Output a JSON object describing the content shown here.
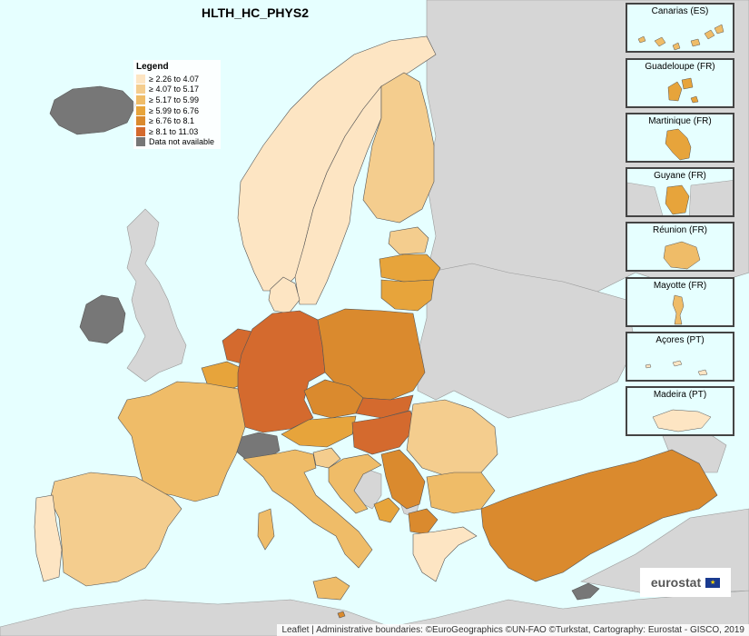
{
  "title": "HLTH_HC_PHYS2",
  "legend": {
    "title": "Legend",
    "items": [
      {
        "label": "≥ 2.26 to 4.07",
        "color": "#fde5c3"
      },
      {
        "label": "≥ 4.07 to 5.17",
        "color": "#f4cd8e"
      },
      {
        "label": "≥ 5.17 to 5.99",
        "color": "#efbc68"
      },
      {
        "label": "≥ 5.99 to 6.76",
        "color": "#e7a43b"
      },
      {
        "label": "≥ 6.76 to 8.1",
        "color": "#da8a2e"
      },
      {
        "label": "≥ 8.1 to 11.03",
        "color": "#d46a2e"
      },
      {
        "label": "Data not available",
        "color": "#777777"
      }
    ]
  },
  "insets": [
    {
      "label": "Canarias (ES)"
    },
    {
      "label": "Guadeloupe (FR)"
    },
    {
      "label": "Martinique (FR)"
    },
    {
      "label": "Guyane (FR)"
    },
    {
      "label": "Réunion (FR)"
    },
    {
      "label": "Mayotte (FR)"
    },
    {
      "label": "Açores (PT)"
    },
    {
      "label": "Madeira (PT)"
    }
  ],
  "logo_text": "eurostat",
  "attribution": "Leaflet | Administrative boundaries: ©EuroGeographics ©UN-FAO ©Turkstat, Cartography: Eurostat - GISCO, 2019",
  "colors": {
    "sea": "#e6ffff",
    "non_eu_land": "#d6d6d6",
    "border": "#555555"
  }
}
